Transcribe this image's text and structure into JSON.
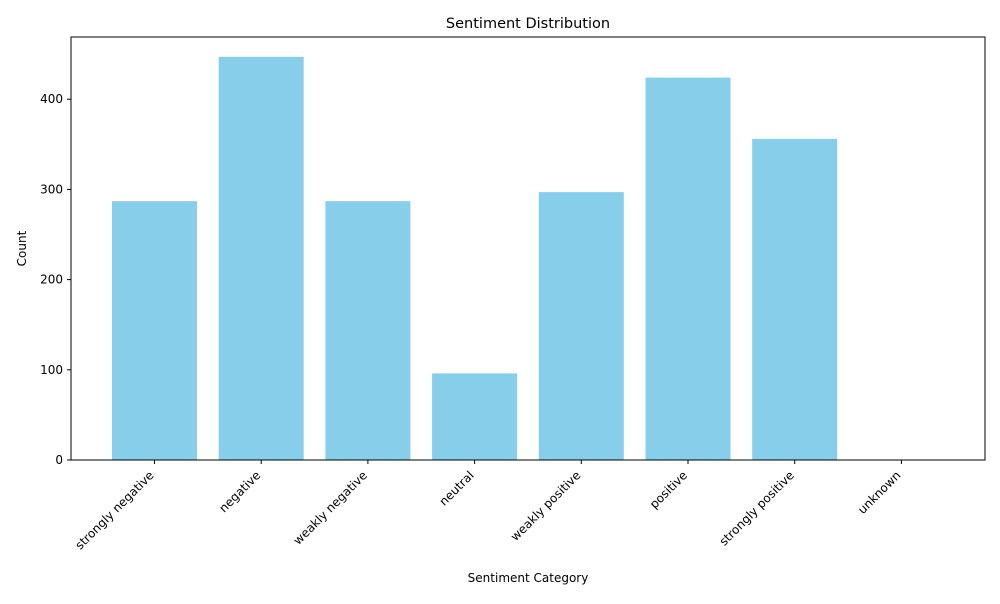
{
  "chart_data": {
    "type": "bar",
    "title": "Sentiment Distribution",
    "xlabel": "Sentiment Category",
    "ylabel": "Count",
    "categories": [
      "strongly negative",
      "negative",
      "weakly negative",
      "neutral",
      "weakly positive",
      "positive",
      "strongly positive",
      "unknown"
    ],
    "values": [
      287,
      447,
      287,
      96,
      297,
      424,
      356,
      0
    ],
    "ylim": [
      0,
      469
    ],
    "yticks": [
      "0",
      "100",
      "200",
      "300",
      "400"
    ],
    "bar_color": "#87CEEB",
    "grid": false,
    "legend": "none"
  }
}
